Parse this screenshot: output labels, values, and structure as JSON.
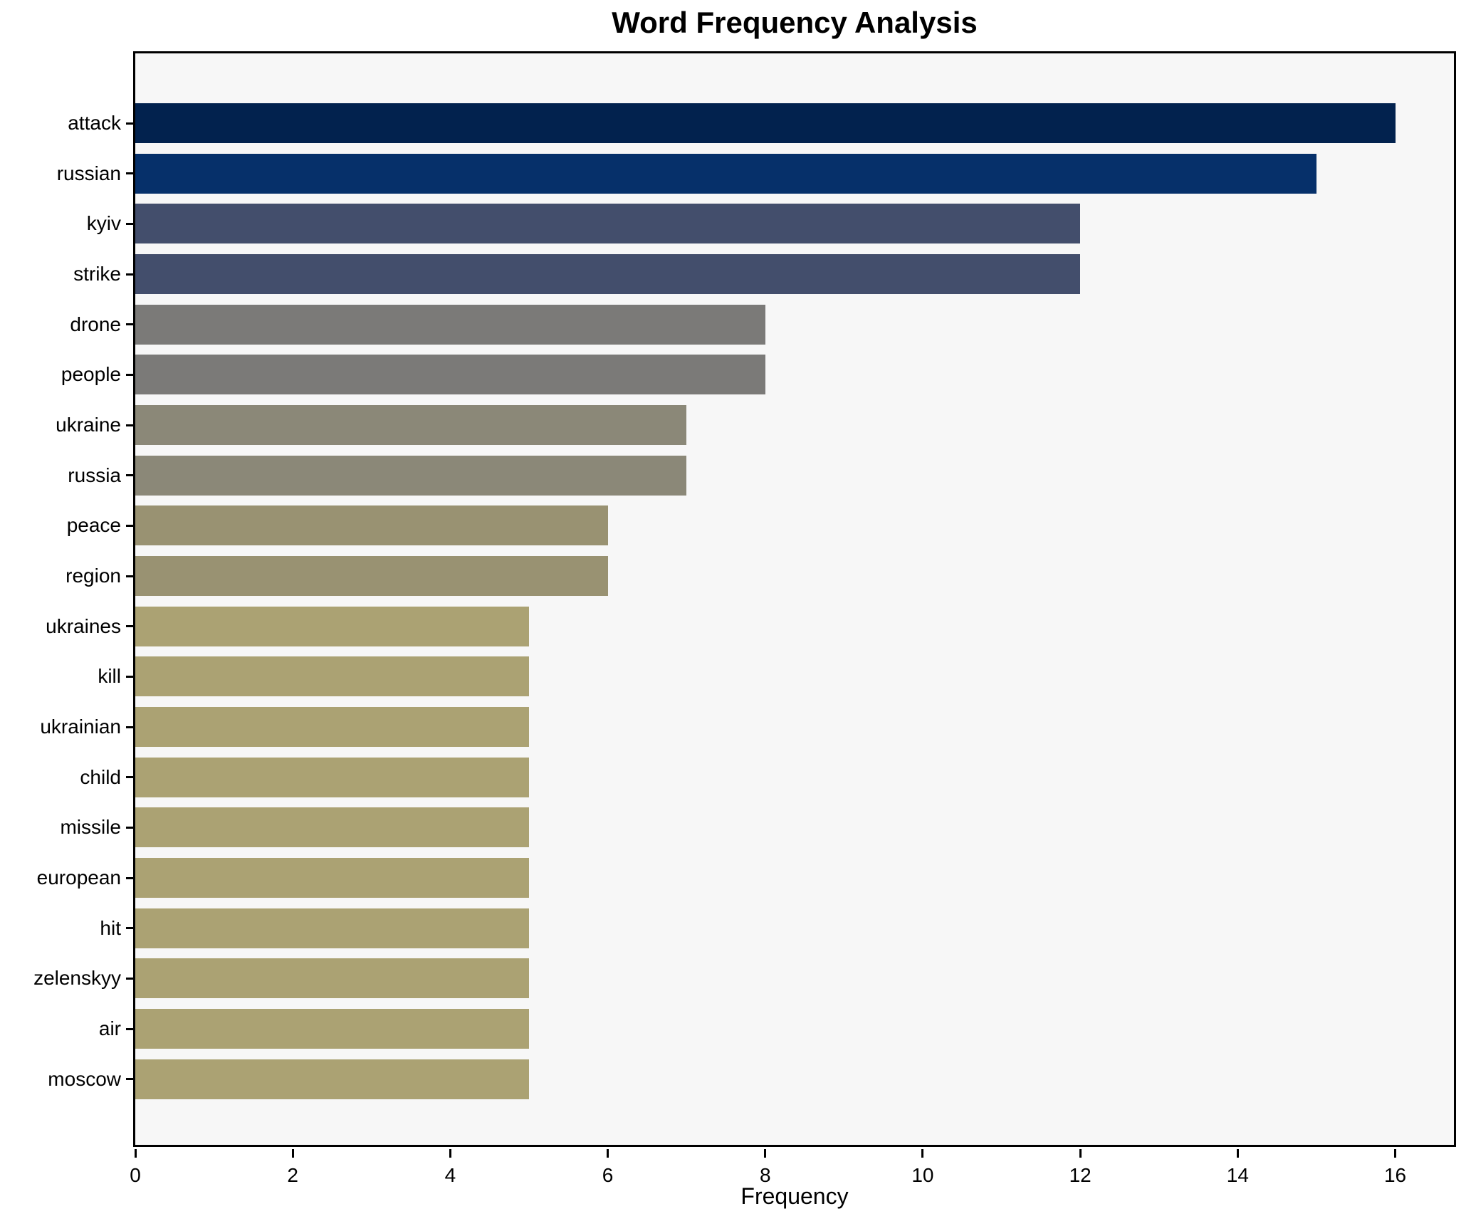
{
  "chart_data": {
    "type": "bar",
    "orientation": "horizontal",
    "title": "Word Frequency Analysis",
    "xlabel": "Frequency",
    "ylabel": "",
    "categories": [
      "attack",
      "russian",
      "kyiv",
      "strike",
      "drone",
      "people",
      "ukraine",
      "russia",
      "peace",
      "region",
      "ukraines",
      "kill",
      "ukrainian",
      "child",
      "missile",
      "european",
      "hit",
      "zelenskyy",
      "air",
      "moscow"
    ],
    "values": [
      16,
      15,
      12,
      12,
      8,
      8,
      7,
      7,
      6,
      6,
      5,
      5,
      5,
      5,
      5,
      5,
      5,
      5,
      5,
      5
    ],
    "bar_colors": [
      "#02224e",
      "#06306a",
      "#434e6c",
      "#434e6c",
      "#7b7a78",
      "#7b7a78",
      "#8b8878",
      "#8b8878",
      "#999272",
      "#999272",
      "#aba273",
      "#aba273",
      "#aba273",
      "#aba273",
      "#aba273",
      "#aba273",
      "#aba273",
      "#aba273",
      "#aba273",
      "#aba273"
    ],
    "xlim": [
      0,
      16.8
    ],
    "xticks": [
      0,
      2,
      4,
      6,
      8,
      10,
      12,
      14,
      16
    ],
    "grid": false,
    "legend": false,
    "plot_background": "#f7f7f7",
    "figure_background": "#ffffff",
    "colormap": "cividis"
  }
}
